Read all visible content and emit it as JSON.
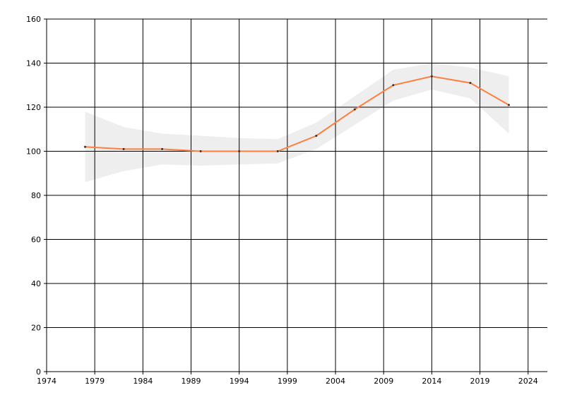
{
  "chart_data": {
    "type": "line",
    "x": [
      1978,
      1982,
      1986,
      1990,
      1994,
      1998,
      2002,
      2006,
      2010,
      2014,
      2018,
      2022
    ],
    "series": [
      {
        "color": "#ff7f3f",
        "values": [
          102,
          101,
          101,
          100,
          100,
          100,
          107,
          119,
          130,
          134,
          131,
          121
        ],
        "upper": [
          118,
          111,
          108,
          107,
          106,
          105.5,
          113,
          125,
          137,
          140,
          138,
          134
        ],
        "lower": [
          86,
          91,
          94,
          93.5,
          94,
          94.5,
          101,
          112,
          123,
          128,
          124,
          108
        ],
        "band_color": "#eeeeee"
      }
    ],
    "xlim": [
      1974,
      2026
    ],
    "xticks": [
      1974,
      1979,
      1984,
      1989,
      1994,
      1999,
      2004,
      2009,
      2014,
      2019,
      2024
    ],
    "ylim": [
      0,
      160
    ],
    "yticks": [
      0,
      20,
      40,
      60,
      80,
      100,
      120,
      140,
      160
    ],
    "grid": true
  }
}
